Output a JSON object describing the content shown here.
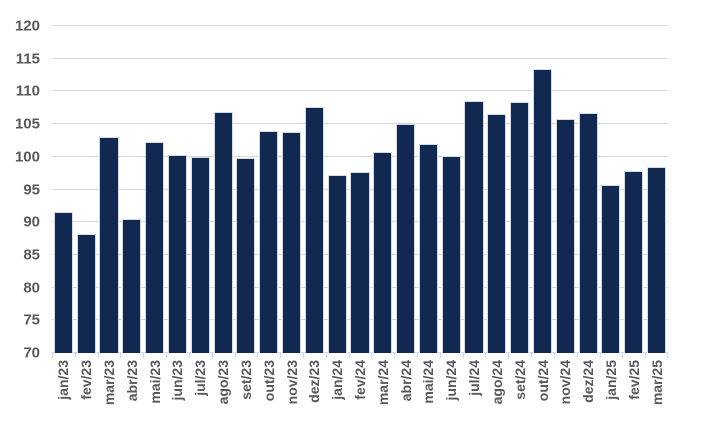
{
  "chart_data": {
    "type": "bar",
    "title": "",
    "xlabel": "",
    "ylabel": "",
    "categories": [
      "jan/23",
      "fev/23",
      "mar/23",
      "abr/23",
      "mai/23",
      "jun/23",
      "jul/23",
      "ago/23",
      "set/23",
      "out/23",
      "nov/23",
      "dez/23",
      "jan/24",
      "fev/24",
      "mar/24",
      "abr/24",
      "mai/24",
      "jun/24",
      "jul/24",
      "ago/24",
      "set/24",
      "out/24",
      "nov/24",
      "dez/24",
      "jan/25",
      "fev/25",
      "mar/25"
    ],
    "values": [
      91.5,
      88.2,
      103.0,
      90.5,
      102.2,
      100.3,
      100.0,
      106.8,
      99.8,
      104.0,
      103.8,
      107.6,
      97.2,
      97.7,
      100.8,
      105.0,
      102.0,
      100.2,
      108.6,
      106.5,
      108.4,
      113.4,
      105.8,
      106.7,
      95.7,
      97.9,
      98.5
    ],
    "ylim": [
      70,
      120
    ],
    "yticks": [
      70,
      75,
      80,
      85,
      90,
      95,
      100,
      105,
      110,
      115,
      120
    ],
    "grid": true,
    "legend": "none",
    "colors": {
      "bar_fill": "#112850",
      "bar_border": "#d5dbe4",
      "gridline": "#d9d9d9",
      "tick": "#d9d9d9",
      "axis_label": "#595959",
      "background": "#ffffff"
    }
  }
}
